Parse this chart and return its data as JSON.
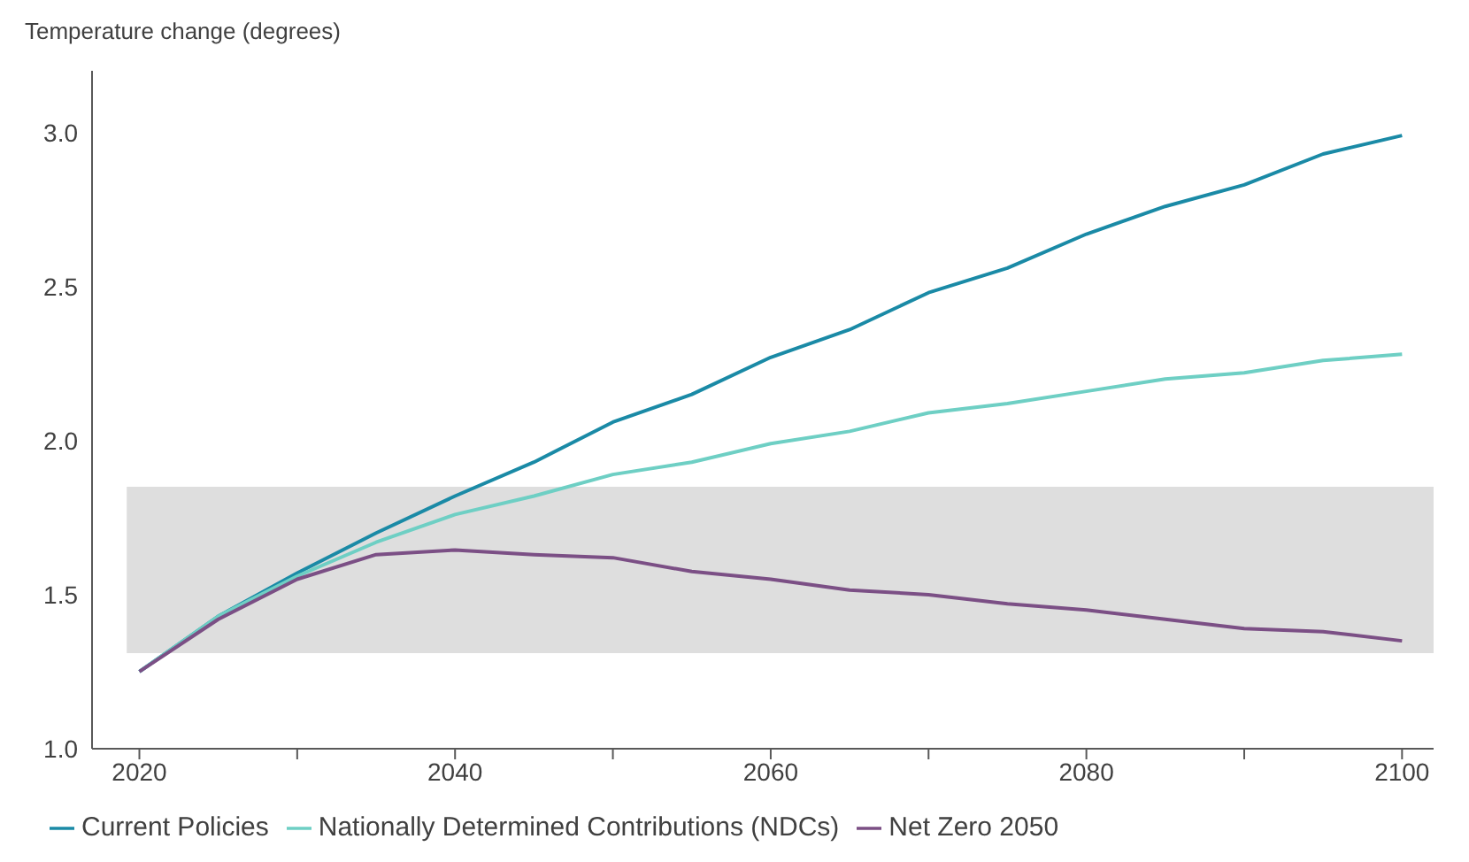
{
  "chart_data": {
    "type": "line",
    "ylabel": "Temperature change (degrees)",
    "x": [
      2020,
      2025,
      2030,
      2035,
      2040,
      2045,
      2050,
      2055,
      2060,
      2065,
      2070,
      2075,
      2080,
      2085,
      2090,
      2095,
      2100
    ],
    "series": [
      {
        "name": "Current Policies",
        "color": "#1a8aa6",
        "values": [
          1.25,
          1.43,
          1.57,
          1.7,
          1.82,
          1.93,
          2.06,
          2.15,
          2.27,
          2.36,
          2.48,
          2.56,
          2.67,
          2.76,
          2.83,
          2.93,
          2.99
        ]
      },
      {
        "name": "Nationally Determined Contributions (NDCs)",
        "color": "#6ecfc4",
        "values": [
          1.25,
          1.43,
          1.56,
          1.67,
          1.76,
          1.82,
          1.89,
          1.93,
          1.99,
          2.03,
          2.09,
          2.12,
          2.16,
          2.2,
          2.22,
          2.26,
          2.28
        ]
      },
      {
        "name": "Net Zero 2050",
        "color": "#7b4f85",
        "values": [
          1.25,
          1.42,
          1.55,
          1.63,
          1.645,
          1.63,
          1.62,
          1.575,
          1.55,
          1.515,
          1.5,
          1.47,
          1.45,
          1.42,
          1.39,
          1.38,
          1.35
        ]
      }
    ],
    "xlim": [
      2017,
      2102
    ],
    "xticks": [
      2020,
      {
        "value": 2030,
        "label": null
      },
      2040,
      {
        "value": 2050,
        "label": null
      },
      2060,
      {
        "value": 2070,
        "label": null
      },
      2080,
      {
        "value": 2090,
        "label": null
      },
      2100
    ],
    "ylim": [
      1.0,
      3.2
    ],
    "yticks": [
      {
        "value": 1.0,
        "label": "1.0"
      },
      1.5,
      {
        "value": 2.0,
        "label": "2.0"
      },
      2.5,
      {
        "value": 3.0,
        "label": "3.0"
      }
    ],
    "bands": [
      {
        "axis": "y",
        "from": 1.31,
        "to": 1.85,
        "color": "#dedede"
      }
    ],
    "grid": false,
    "legend": "bottom",
    "marker": "none",
    "line_style": "solid"
  }
}
